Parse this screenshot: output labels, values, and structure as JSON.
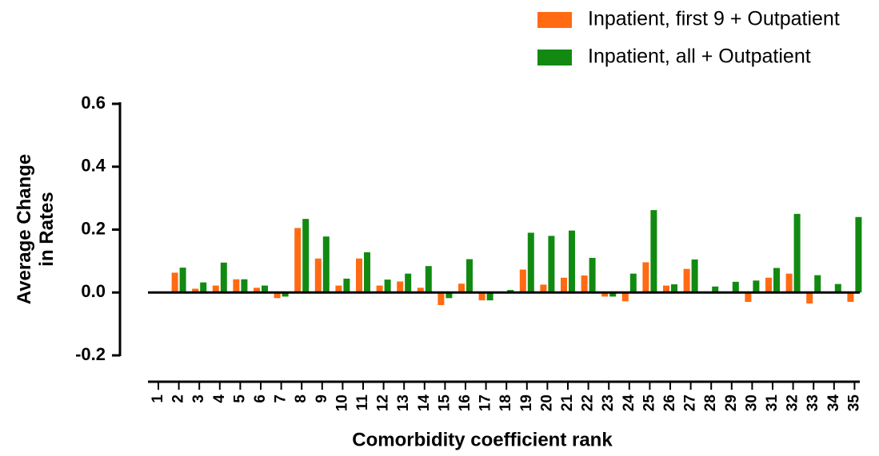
{
  "chart_data": {
    "type": "bar",
    "y_label": "Average Change in Rates",
    "x_label": "Comorbidity coefficient rank",
    "categories": [
      "1",
      "2",
      "3",
      "4",
      "5",
      "6",
      "7",
      "8",
      "9",
      "10",
      "11",
      "12",
      "13",
      "14",
      "15",
      "16",
      "17",
      "18",
      "19",
      "20",
      "21",
      "22",
      "23",
      "24",
      "25",
      "26",
      "27",
      "28",
      "29",
      "30",
      "31",
      "32",
      "33",
      "34",
      "35"
    ],
    "series": [
      {
        "name": "Inpatient, first 9 + Outpatient",
        "color": "#ff6a13",
        "values": [
          0,
          0.063,
          0.012,
          0.022,
          0.042,
          0.015,
          -0.018,
          0.205,
          0.108,
          0.022,
          0.108,
          0.022,
          0.035,
          0.015,
          -0.04,
          0.028,
          -0.025,
          0,
          0.073,
          0.025,
          0.047,
          0.054,
          -0.013,
          -0.028,
          0.096,
          0.022,
          0.075,
          0,
          0,
          -0.03,
          0.047,
          0.06,
          -0.035,
          0,
          -0.03
        ]
      },
      {
        "name": "Inpatient, all + Outpatient",
        "color": "#128a12",
        "values": [
          0,
          0.079,
          0.032,
          0.095,
          0.042,
          0.022,
          -0.013,
          0.234,
          0.178,
          0.044,
          0.128,
          0.041,
          0.06,
          0.084,
          -0.018,
          0.106,
          -0.025,
          0.008,
          0.19,
          0.18,
          0.197,
          0.11,
          -0.013,
          0.06,
          0.262,
          0.026,
          0.105,
          0.019,
          0.034,
          0.038,
          0.078,
          0.25,
          0.055,
          0.027,
          0.24
        ]
      }
    ],
    "ylim": [
      -0.2,
      0.6
    ],
    "yticks": [
      -0.2,
      {
        "value": 0,
        "label": "0.0"
      },
      0.2,
      0.4,
      0.6
    ],
    "legend": "top-right"
  }
}
